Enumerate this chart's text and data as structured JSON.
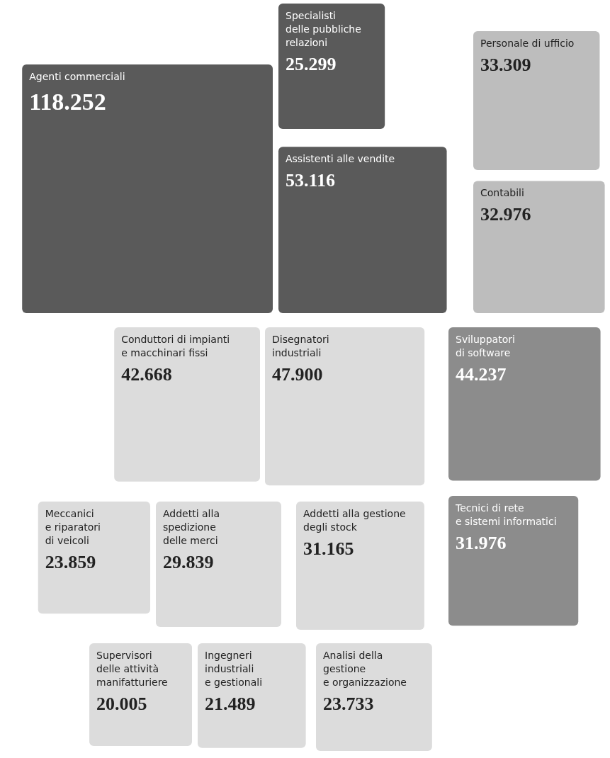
{
  "chart_data": {
    "type": "other",
    "categories": [
      "Agenti commerciali",
      "Specialisti delle pubbliche relazioni",
      "Assistenti alle vendite",
      "Personale di ufficio",
      "Contabili",
      "Conduttori di impianti e macchinari fissi",
      "Disegnatori industriali",
      "Sviluppatori di software",
      "Tecnici di rete e sistemi informatici",
      "Meccanici e riparatori di veicoli",
      "Addetti alla spedizione delle merci",
      "Addetti alla gestione degli stock",
      "Supervisori delle attività manifatturiere",
      "Ingegneri industriali e gestionali",
      "Analisi della gestione e organizzazione"
    ],
    "values": [
      118252,
      25299,
      53116,
      33309,
      32976,
      42668,
      47900,
      44237,
      31976,
      23859,
      29839,
      31165,
      20005,
      21489,
      23733
    ],
    "value_labels": [
      "118.252",
      "25.299",
      "53.116",
      "33.309",
      "32.976",
      "42.668",
      "47.900",
      "44.237",
      "31.976",
      "23.859",
      "29.839",
      "31.165",
      "20.005",
      "21.489",
      "23.733"
    ],
    "colors": [
      "#5a5a5a",
      "#5a5a5a",
      "#5a5a5a",
      "#bdbdbd",
      "#bdbdbd",
      "#dcdcdc",
      "#dcdcdc",
      "#8c8c8c",
      "#8c8c8c",
      "#dcdcdc",
      "#dcdcdc",
      "#dcdcdc",
      "#dcdcdc",
      "#dcdcdc",
      "#dcdcdc"
    ]
  }
}
